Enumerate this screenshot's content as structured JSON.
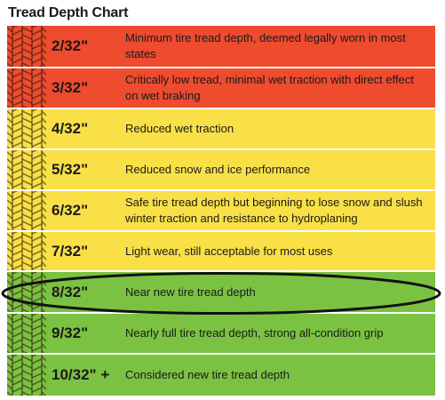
{
  "title": "Tread Depth Chart",
  "colors": {
    "red": "#ee4b2f",
    "yellow": "#f9e047",
    "green": "#7cc242",
    "highlight_ring": "#111111"
  },
  "rows": [
    {
      "depth": "2/32\"",
      "description": "Minimum tire tread depth, deemed legally worn in most states",
      "color": "red"
    },
    {
      "depth": "3/32\"",
      "description": "Critically low tread, minimal wet traction with direct effect on wet braking",
      "color": "red"
    },
    {
      "depth": "4/32\"",
      "description": "Reduced wet traction",
      "color": "yellow"
    },
    {
      "depth": "5/32\"",
      "description": "Reduced snow and ice performance",
      "color": "yellow"
    },
    {
      "depth": "6/32\"",
      "description": "Safe tire tread depth but beginning to lose snow and slush winter traction and resistance to hydroplaning",
      "color": "yellow"
    },
    {
      "depth": "7/32\"",
      "description": "Light wear, still acceptable for most uses",
      "color": "yellow"
    },
    {
      "depth": "8/32\"",
      "description": "Near new tire tread depth",
      "color": "green"
    },
    {
      "depth": "9/32\"",
      "description": "Nearly full tire tread depth, strong all-condition grip",
      "color": "green"
    },
    {
      "depth": "10/32\" +",
      "description": "Considered new tire tread depth",
      "color": "green"
    }
  ],
  "highlighted_row": 6
}
